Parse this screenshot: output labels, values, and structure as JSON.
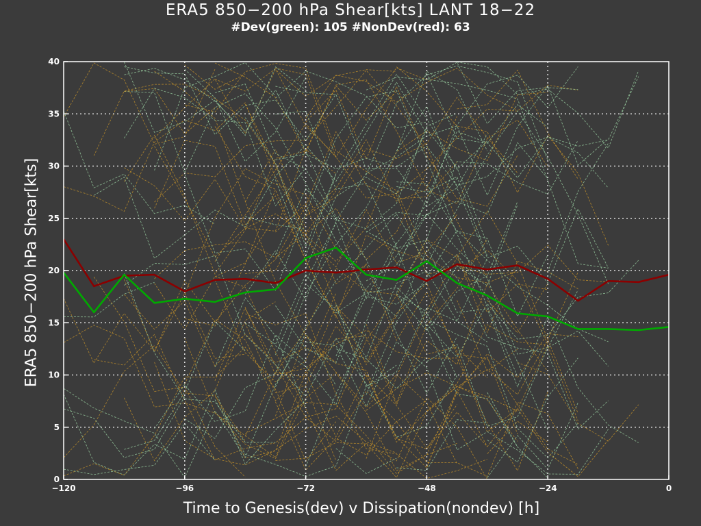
{
  "chart_data": {
    "type": "line",
    "title": "ERA5 850−200 hPa Shear[kts] LANT 18−22",
    "subtitle": "#Dev(green): 105 #NonDev(red): 63",
    "xlabel": "Time to Genesis(dev) v Dissipation(nondev) [h]",
    "ylabel": "ERA5 850−200 hPa Shear[kts]",
    "xlim": [
      -120,
      0
    ],
    "ylim": [
      0,
      40
    ],
    "xticks": [
      -120,
      -96,
      -72,
      -48,
      -24,
      0
    ],
    "xtick_labels": [
      "−120",
      "−96",
      "−72",
      "−48",
      "−24",
      "0"
    ],
    "yticks": [
      0,
      5,
      10,
      15,
      20,
      25,
      30,
      35,
      40
    ],
    "ytick_labels": [
      "0",
      "5",
      "10",
      "15",
      "20",
      "25",
      "30",
      "35",
      "40"
    ],
    "grid": true,
    "x": [
      -120,
      -114,
      -108,
      -102,
      -96,
      -90,
      -84,
      -78,
      -72,
      -66,
      -60,
      -54,
      -48,
      -42,
      -36,
      -30,
      -24,
      -18,
      -12,
      -6,
      0
    ],
    "series": [
      {
        "color": "#8b0000",
        "values": [
          23.0,
          18.5,
          19.5,
          19.6,
          18.0,
          19.1,
          19.2,
          18.8,
          20.0,
          19.8,
          20.1,
          20.3,
          19.0,
          20.6,
          20.1,
          20.5,
          19.2,
          17.1,
          19.0,
          18.9,
          19.6
        ]
      },
      {
        "color": "#00aa00",
        "values": [
          19.8,
          16.0,
          19.6,
          16.9,
          17.3,
          17.0,
          17.9,
          18.2,
          21.2,
          22.2,
          19.6,
          19.1,
          20.9,
          18.8,
          17.6,
          15.9,
          15.6,
          14.4,
          14.4,
          14.3,
          14.6
        ]
      }
    ],
    "background_tracks": {
      "style": "thin dashed",
      "colors": [
        "#c8942a",
        "#9ed6a6"
      ]
    }
  }
}
